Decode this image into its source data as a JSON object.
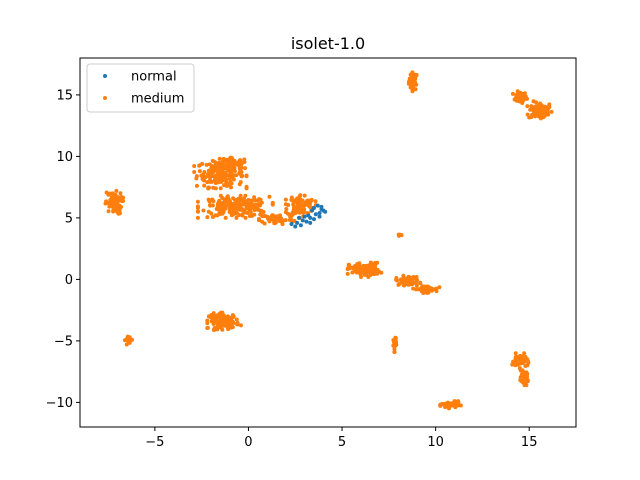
{
  "chart_data": {
    "type": "scatter",
    "title": "isolet-1.0",
    "xlabel": "",
    "ylabel": "",
    "xlim": [
      -9.0,
      17.5
    ],
    "ylim": [
      -12.0,
      18.0
    ],
    "xticks": [
      -5,
      0,
      5,
      10,
      15
    ],
    "xtick_labels": [
      "−5",
      "0",
      "5",
      "10",
      "15"
    ],
    "yticks": [
      -10,
      -5,
      0,
      5,
      10,
      15
    ],
    "ytick_labels": [
      "−10",
      "−5",
      "0",
      "5",
      "10",
      "15"
    ],
    "grid": false,
    "legend_position": "top-left",
    "series": [
      {
        "name": "normal",
        "color": "#1f77b4",
        "points": [
          [
            2.3,
            4.5
          ],
          [
            2.6,
            4.6
          ],
          [
            2.9,
            4.8
          ],
          [
            3.1,
            4.7
          ],
          [
            3.3,
            5.0
          ],
          [
            3.5,
            4.9
          ],
          [
            3.6,
            5.3
          ],
          [
            3.8,
            5.4
          ],
          [
            3.9,
            5.7
          ],
          [
            4.0,
            5.6
          ],
          [
            3.4,
            5.6
          ],
          [
            3.7,
            6.0
          ],
          [
            3.2,
            5.2
          ],
          [
            2.8,
            4.4
          ],
          [
            3.0,
            5.1
          ],
          [
            3.5,
            5.8
          ],
          [
            4.1,
            5.5
          ],
          [
            2.5,
            4.3
          ],
          [
            3.3,
            4.6
          ],
          [
            3.8,
            5.1
          ],
          [
            2.7,
            5.0
          ],
          [
            3.9,
            5.9
          ]
        ]
      },
      {
        "name": "medium",
        "color": "#ff7f0e",
        "clusters": [
          {
            "cx": 8.8,
            "cy": 16.1,
            "rx": 0.25,
            "ry": 0.8,
            "n": 45
          },
          {
            "cx": 14.5,
            "cy": 14.8,
            "rx": 0.4,
            "ry": 0.5,
            "n": 40
          },
          {
            "cx": 15.6,
            "cy": 13.7,
            "rx": 0.7,
            "ry": 0.8,
            "n": 75
          },
          {
            "cx": -1.5,
            "cy": 8.6,
            "rx": 1.4,
            "ry": 1.2,
            "n": 170
          },
          {
            "cx": -0.8,
            "cy": 9.4,
            "rx": 0.8,
            "ry": 0.5,
            "n": 60
          },
          {
            "cx": -0.7,
            "cy": 5.9,
            "rx": 2.0,
            "ry": 0.9,
            "n": 200
          },
          {
            "cx": 1.5,
            "cy": 4.9,
            "rx": 1.0,
            "ry": 0.5,
            "n": 60
          },
          {
            "cx": 2.8,
            "cy": 6.0,
            "rx": 0.8,
            "ry": 1.0,
            "n": 90
          },
          {
            "cx": -7.2,
            "cy": 6.2,
            "rx": 0.5,
            "ry": 1.0,
            "n": 70
          },
          {
            "cx": 8.1,
            "cy": 3.6,
            "rx": 0.1,
            "ry": 0.15,
            "n": 6
          },
          {
            "cx": 6.2,
            "cy": 0.8,
            "rx": 0.9,
            "ry": 0.6,
            "n": 110
          },
          {
            "cx": 8.5,
            "cy": -0.1,
            "rx": 0.7,
            "ry": 0.4,
            "n": 50
          },
          {
            "cx": 9.5,
            "cy": -0.8,
            "rx": 0.7,
            "ry": 0.3,
            "n": 50
          },
          {
            "cx": -1.3,
            "cy": -3.4,
            "rx": 0.9,
            "ry": 0.7,
            "n": 110
          },
          {
            "cx": -6.4,
            "cy": -4.9,
            "rx": 0.2,
            "ry": 0.4,
            "n": 20
          },
          {
            "cx": 7.8,
            "cy": -5.2,
            "rx": 0.1,
            "ry": 0.7,
            "n": 22
          },
          {
            "cx": 14.5,
            "cy": -6.6,
            "rx": 0.45,
            "ry": 0.6,
            "n": 55
          },
          {
            "cx": 14.7,
            "cy": -8.0,
            "rx": 0.3,
            "ry": 0.6,
            "n": 40
          },
          {
            "cx": 10.8,
            "cy": -10.2,
            "rx": 0.55,
            "ry": 0.3,
            "n": 50
          }
        ]
      }
    ]
  }
}
